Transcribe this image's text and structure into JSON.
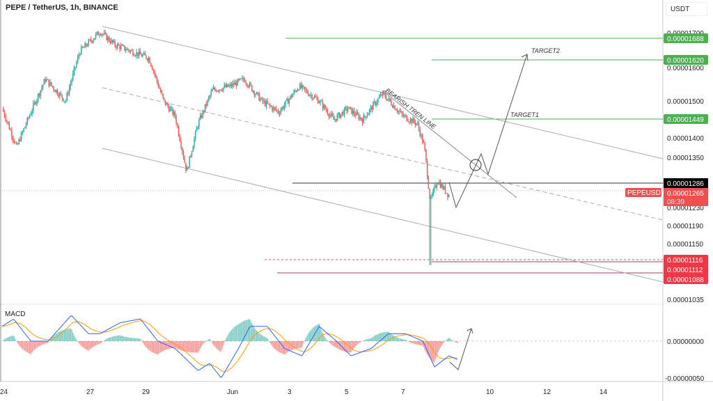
{
  "header": {
    "title": "PEPE / TetherUS, 1h, BINANCE",
    "currency": "USDT"
  },
  "price_axis": {
    "scale": "log",
    "ticks": [
      "0.00001700",
      "0.00001600",
      "0.00001500",
      "0.00001400",
      "0.00001350",
      "0.00001230",
      "0.00001190",
      "0.00001150",
      "0.00001035"
    ],
    "level_tags": [
      {
        "value": "0.00001688",
        "color": "#4caf50"
      },
      {
        "value": "0.00001620",
        "color": "#4caf50"
      },
      {
        "value": "0.00001449",
        "color": "#4caf50"
      },
      {
        "value": "0.00001286",
        "color": "#000000"
      },
      {
        "value": "0.00001265",
        "color": "#ef4f4f"
      },
      {
        "value": "0.00001116",
        "color": "#f23645"
      },
      {
        "value": "0.00001112",
        "color": "#f23645"
      },
      {
        "value": "0.00001088",
        "color": "#f23645"
      }
    ],
    "symbol_tag": "PEPEUSDT",
    "countdown": "08:39"
  },
  "macd_axis": {
    "ticks": [
      "0.00000000",
      "-0.00000050"
    ]
  },
  "time_axis": {
    "ticks": [
      "24",
      "27",
      "29",
      "Jun",
      "3",
      "5",
      "7",
      "10",
      "12",
      "14"
    ]
  },
  "annotations": {
    "target1": "TARGET1",
    "target2": "TARGET2",
    "trendline": "BEARISH TREN LINE",
    "indicator": "MACD"
  },
  "colors": {
    "up": "#26a69a",
    "down": "#ef5350",
    "macd": "#2962ff",
    "signal": "#ff9800",
    "level_green": "#4caf50",
    "level_red": "#f23645"
  },
  "chart_data": {
    "type": "candlestick",
    "symbol": "PEPEUSDT",
    "interval": "1h",
    "x_unit": "days since May 24",
    "close_keypoints": [
      [
        0,
        1.48e-05
      ],
      [
        0.5,
        1.38e-05
      ],
      [
        1.5,
        1.56e-05
      ],
      [
        2.2,
        1.5e-05
      ],
      [
        2.7,
        1.64e-05
      ],
      [
        3.4,
        1.7e-05
      ],
      [
        3.9,
        1.66e-05
      ],
      [
        4.5,
        1.64e-05
      ],
      [
        5.1,
        1.62e-05
      ],
      [
        5.6,
        1.5e-05
      ],
      [
        6.0,
        1.46e-05
      ],
      [
        6.4,
        1.32e-05
      ],
      [
        6.8,
        1.44e-05
      ],
      [
        7.3,
        1.53e-05
      ],
      [
        7.9,
        1.54e-05
      ],
      [
        8.4,
        1.56e-05
      ],
      [
        9.0,
        1.5e-05
      ],
      [
        9.6,
        1.47e-05
      ],
      [
        10.3,
        1.54e-05
      ],
      [
        11.0,
        1.5e-05
      ],
      [
        11.5,
        1.45e-05
      ],
      [
        12.0,
        1.48e-05
      ],
      [
        12.5,
        1.45e-05
      ],
      [
        13.2,
        1.52e-05
      ],
      [
        13.9,
        1.46e-05
      ],
      [
        14.4,
        1.44e-05
      ],
      [
        14.65,
        1.38e-05
      ],
      [
        14.85,
        1.25e-05
      ],
      [
        15.1,
        1.3e-05
      ],
      [
        15.5,
        1.265e-05
      ]
    ],
    "macd_keypoints": [
      [
        0,
        2e-07
      ],
      [
        0.4,
        3e-07
      ],
      [
        1.0,
        0.0
      ],
      [
        1.6,
        0.0
      ],
      [
        2.4,
        3.5e-07
      ],
      [
        3.0,
        1e-07
      ],
      [
        3.4,
        1e-07
      ],
      [
        4.1,
        2.5e-07
      ],
      [
        4.8,
        3e-07
      ],
      [
        5.4,
        0.0
      ],
      [
        6.0,
        -1e-07
      ],
      [
        6.8,
        -4e-07
      ],
      [
        7.2,
        -3e-07
      ],
      [
        7.6,
        -5e-07
      ],
      [
        8.2,
        -1e-07
      ],
      [
        8.6,
        2e-07
      ],
      [
        9.2,
        2e-07
      ],
      [
        9.8,
        -1e-07
      ],
      [
        10.4,
        -2e-07
      ],
      [
        11.0,
        2e-07
      ],
      [
        11.6,
        0.0
      ],
      [
        12.1,
        -2e-07
      ],
      [
        12.8,
        -1e-07
      ],
      [
        13.4,
        1e-07
      ],
      [
        14.0,
        1e-07
      ],
      [
        14.6,
        0.0
      ],
      [
        15.0,
        -3.5e-07
      ],
      [
        15.5,
        -2e-07
      ],
      [
        15.8,
        -2.5e-07
      ]
    ]
  }
}
